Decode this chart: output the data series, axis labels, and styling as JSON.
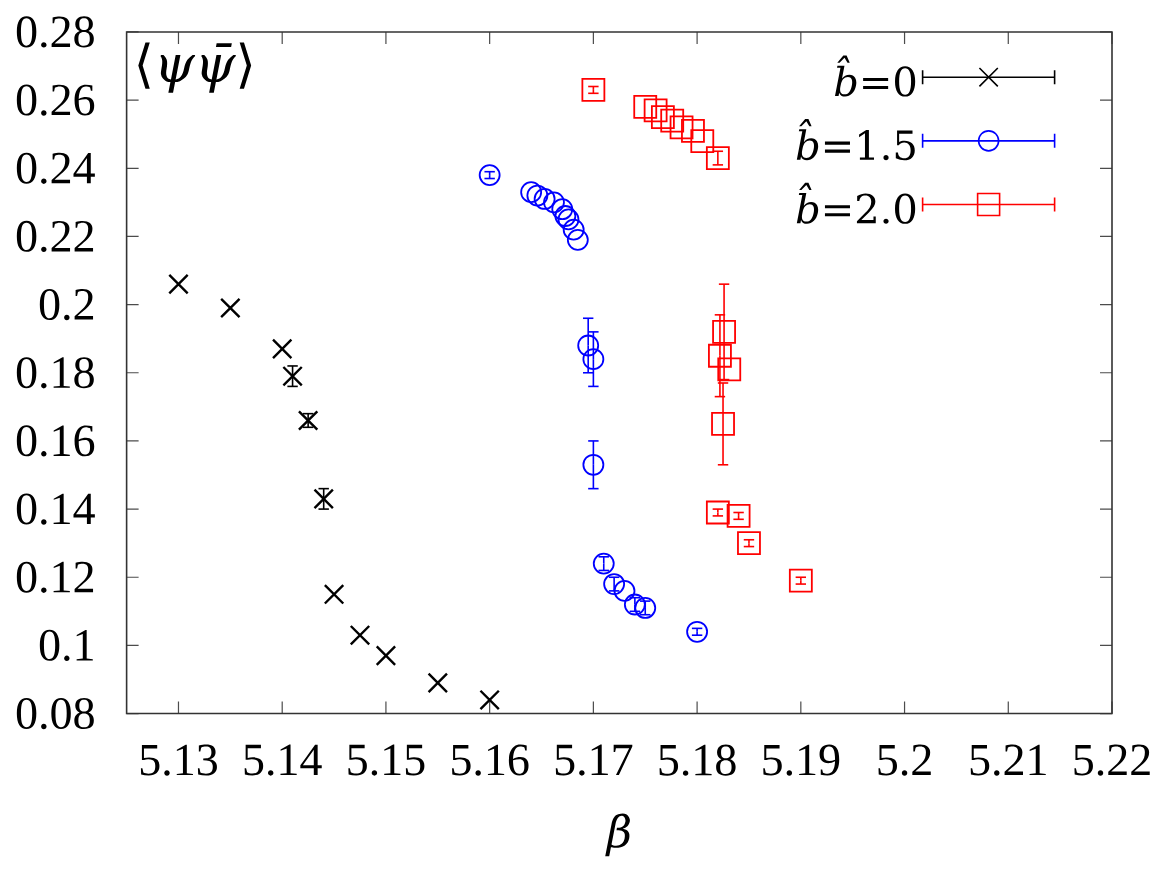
{
  "chart_data": {
    "type": "scatter",
    "ylabel": "⟨*ψψ̄*⟩",
    "xlabel": "β",
    "xlim": [
      5.125,
      5.22
    ],
    "xticks": [
      5.13,
      5.14,
      5.15,
      5.16,
      5.17,
      5.18,
      5.19,
      5.2,
      5.21,
      5.22
    ],
    "ylim": [
      0.08,
      0.28
    ],
    "yticks": [
      0.08,
      0.1,
      0.12,
      0.14,
      0.16,
      0.18,
      0.2,
      0.22,
      0.24,
      0.26,
      0.28
    ],
    "legend": "top right",
    "series": [
      {
        "name": "*b̂*=0",
        "color": "#000000",
        "marker": "cross",
        "x": [
          5.13,
          5.135,
          5.14,
          5.141,
          5.1425,
          5.144,
          5.145,
          5.1475,
          5.15,
          5.155,
          5.16
        ],
        "values": [
          0.206,
          0.199,
          0.187,
          0.179,
          0.166,
          0.143,
          0.115,
          0.103,
          0.097,
          0.089,
          0.084
        ],
        "errors": [
          null,
          null,
          null,
          0.003,
          0.002,
          0.003,
          null,
          null,
          null,
          null,
          null
        ]
      },
      {
        "name": "*b̂*=1.5",
        "color": "#0000ff",
        "marker": "circle",
        "x": [
          5.16,
          5.164,
          5.1646,
          5.1653,
          5.1662,
          5.167,
          5.1673,
          5.1676,
          5.1681,
          5.1685,
          5.1695,
          5.17,
          5.17,
          5.171,
          5.172,
          5.173,
          5.174,
          5.175,
          5.18
        ],
        "values": [
          0.238,
          0.233,
          0.232,
          0.231,
          0.23,
          0.228,
          0.226,
          0.225,
          0.222,
          0.219,
          0.188,
          0.184,
          0.153,
          0.124,
          0.118,
          0.116,
          0.112,
          0.111,
          0.104
        ],
        "errors": [
          0.001,
          null,
          null,
          null,
          null,
          null,
          null,
          null,
          null,
          null,
          0.008,
          0.008,
          0.007,
          0.002,
          0.002,
          null,
          0.002,
          0.002,
          0.001
        ]
      },
      {
        "name": "*b̂*=2.0",
        "color": "#ff0000",
        "marker": "square",
        "x": [
          5.17,
          5.175,
          5.176,
          5.1767,
          5.1776,
          5.1785,
          5.1796,
          5.1805,
          5.182,
          5.1826,
          5.1822,
          5.1831,
          5.1825,
          5.182,
          5.184,
          5.185,
          5.19
        ],
        "values": [
          0.263,
          0.258,
          0.257,
          0.255,
          0.254,
          0.252,
          0.251,
          0.248,
          0.243,
          0.192,
          0.185,
          0.181,
          0.165,
          0.139,
          0.138,
          0.13,
          0.119
        ],
        "errors": [
          0.001,
          null,
          null,
          null,
          null,
          null,
          null,
          null,
          0.002,
          0.014,
          0.012,
          null,
          0.012,
          0.001,
          0.001,
          0.001,
          0.001
        ]
      }
    ]
  }
}
